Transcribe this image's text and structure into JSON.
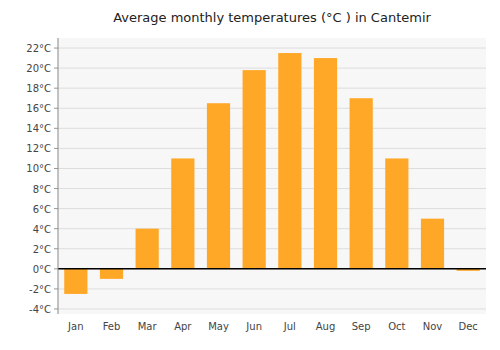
{
  "chart_data": {
    "type": "bar",
    "title": "Average monthly temperatures (°C ) in Cantemir",
    "categories": [
      "Jan",
      "Feb",
      "Mar",
      "Apr",
      "May",
      "Jun",
      "Jul",
      "Aug",
      "Sep",
      "Oct",
      "Nov",
      "Dec"
    ],
    "values": [
      -2.5,
      -1.0,
      4.0,
      11.0,
      16.5,
      19.8,
      21.5,
      21.0,
      17.0,
      11.0,
      5.0,
      -0.2
    ],
    "color": "#FFA726",
    "ylim": [
      -4.5,
      23
    ],
    "yticks": [
      {
        "value": -4,
        "label": "-4°C"
      },
      {
        "value": -2,
        "label": "-2°C"
      },
      {
        "value": 0,
        "label": "0°C"
      },
      {
        "value": 2,
        "label": "2°C"
      },
      {
        "value": 4,
        "label": "4°C"
      },
      {
        "value": 6,
        "label": "6°C"
      },
      {
        "value": 8,
        "label": "8°C"
      },
      {
        "value": 10,
        "label": "10°C"
      },
      {
        "value": 12,
        "label": "12°C"
      },
      {
        "value": 14,
        "label": "14°C"
      },
      {
        "value": 16,
        "label": "16°C"
      },
      {
        "value": 18,
        "label": "18°C"
      },
      {
        "value": 20,
        "label": "20°C"
      },
      {
        "value": 22,
        "label": "22°C"
      }
    ],
    "grid": true
  }
}
